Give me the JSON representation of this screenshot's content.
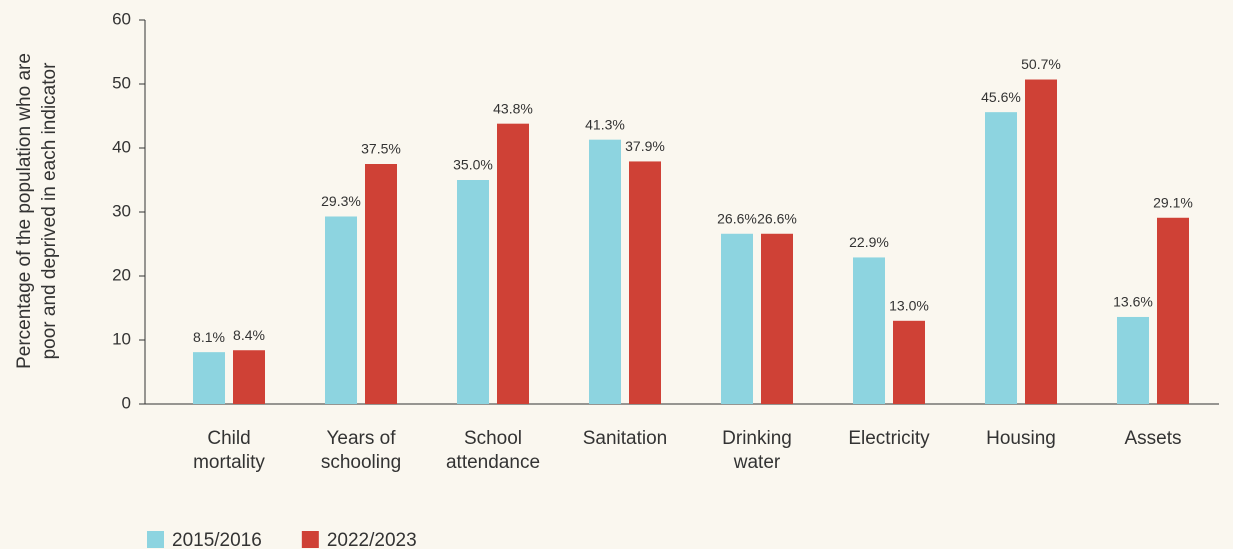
{
  "chart_data": {
    "type": "bar",
    "ylabel": "Percentage of the population who are\npoor and deprived in each indicator",
    "categories": [
      "Child\nmortality",
      "Years of\nschooling",
      "School\nattendance",
      "Sanitation",
      "Drinking\nwater",
      "Electricity",
      "Housing",
      "Assets"
    ],
    "series": [
      {
        "name": "2015/2016",
        "color": "#8dd4e0",
        "values": [
          8.1,
          29.3,
          35.0,
          41.3,
          26.6,
          22.9,
          45.6,
          13.6
        ],
        "value_labels": [
          "8.1%",
          "29.3%",
          "35.0%",
          "41.3%",
          "26.6%",
          "22.9%",
          "45.6%",
          "13.6%"
        ]
      },
      {
        "name": "2022/2023",
        "color": "#cf4136",
        "values": [
          8.4,
          37.5,
          43.8,
          37.9,
          26.6,
          13.0,
          50.7,
          29.1
        ],
        "value_labels": [
          "8.4%",
          "37.5%",
          "43.8%",
          "37.9%",
          "26.6%",
          "13.0%",
          "50.7%",
          "29.1%"
        ]
      }
    ],
    "ylim": [
      0,
      60
    ],
    "yticks": [
      0,
      10,
      20,
      30,
      40,
      50,
      60
    ],
    "grid": false
  }
}
